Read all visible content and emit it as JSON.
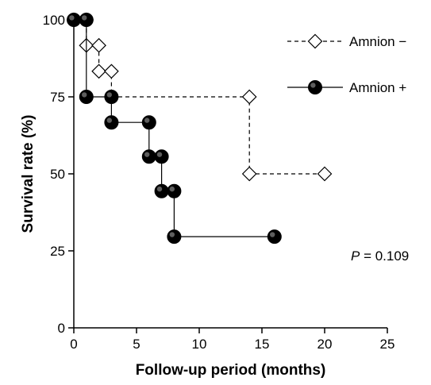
{
  "chart_data": {
    "type": "line",
    "title": "",
    "xlabel": "Follow-up period (months)",
    "ylabel": "Survival rate (%)",
    "xlim": [
      0,
      25
    ],
    "ylim": [
      0,
      100
    ],
    "xticks": [
      0,
      5,
      10,
      15,
      20,
      25
    ],
    "yticks": [
      0,
      25,
      50,
      75,
      100
    ],
    "step": true,
    "grid": false,
    "legend_position": "top-right",
    "series": [
      {
        "name": "Amnion −",
        "style": "dashed",
        "marker": "open-diamond",
        "color": "#000000",
        "steps": [
          [
            0,
            100
          ],
          [
            1,
            91.7
          ],
          [
            2,
            83.3
          ],
          [
            3,
            75
          ],
          [
            14,
            50
          ],
          [
            20,
            50
          ]
        ],
        "markers": [
          [
            0,
            100
          ],
          [
            1,
            100
          ],
          [
            1,
            91.7
          ],
          [
            2,
            91.7
          ],
          [
            2,
            83.3
          ],
          [
            3,
            83.3
          ],
          [
            3,
            75
          ],
          [
            14,
            75
          ],
          [
            14,
            50
          ],
          [
            20,
            50
          ]
        ]
      },
      {
        "name": "Amnion +",
        "style": "solid",
        "marker": "filled-circle",
        "color": "#000000",
        "steps": [
          [
            0,
            100
          ],
          [
            1,
            75
          ],
          [
            3,
            66.7
          ],
          [
            6,
            55.6
          ],
          [
            7,
            44.4
          ],
          [
            8,
            29.6
          ],
          [
            16,
            29.6
          ]
        ],
        "markers": [
          [
            0,
            100
          ],
          [
            1,
            100
          ],
          [
            1,
            75
          ],
          [
            3,
            75
          ],
          [
            3,
            66.7
          ],
          [
            6,
            66.7
          ],
          [
            6,
            55.6
          ],
          [
            7,
            55.6
          ],
          [
            7,
            44.4
          ],
          [
            8,
            44.4
          ],
          [
            8,
            29.6
          ],
          [
            16,
            29.6
          ]
        ]
      }
    ],
    "annotation": {
      "p_label": "P",
      "p_value": " = 0.109"
    }
  }
}
